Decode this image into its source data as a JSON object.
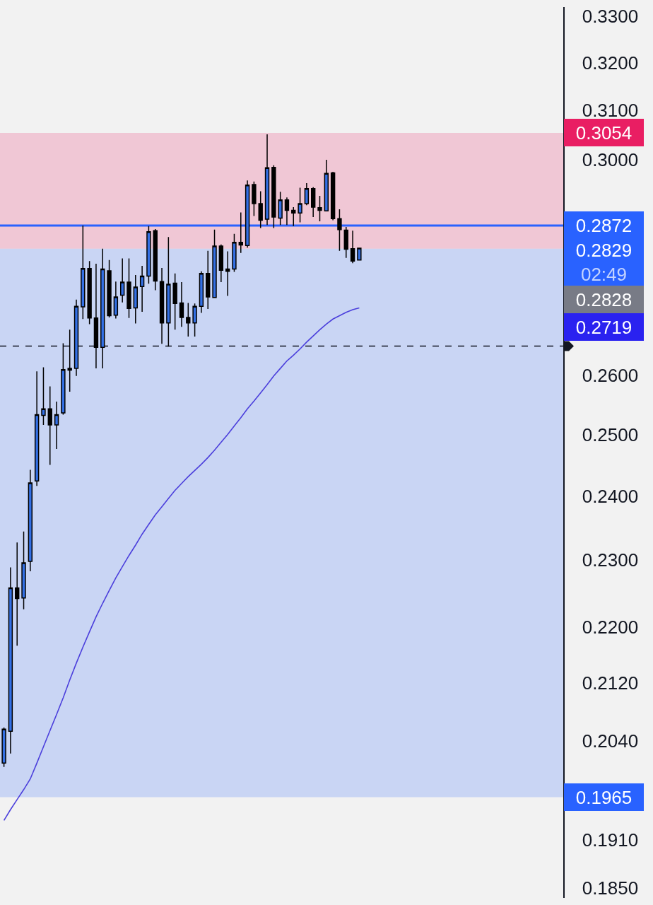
{
  "chart_data": {
    "type": "candlestick",
    "categories": [
      null,
      null,
      null,
      null,
      null,
      null,
      null,
      null,
      null,
      null,
      null,
      null,
      null,
      null,
      null,
      null,
      null,
      null,
      null,
      null,
      null,
      null,
      null,
      null,
      null,
      null,
      null,
      null,
      null,
      null,
      null,
      null,
      null,
      null,
      null,
      null,
      null,
      null,
      null,
      null,
      null,
      null,
      null,
      null,
      null,
      null,
      null,
      null,
      null,
      null,
      null,
      null,
      null,
      null,
      null
    ],
    "ohlc": [
      [
        0.201,
        0.2058,
        0.2005,
        0.2056
      ],
      [
        0.2053,
        0.2289,
        0.2023,
        0.2258
      ],
      [
        0.2258,
        0.2327,
        0.2173,
        0.2242
      ],
      [
        0.2243,
        0.2344,
        0.2226,
        0.2296
      ],
      [
        0.2298,
        0.2442,
        0.2283,
        0.2421
      ],
      [
        0.2424,
        0.2607,
        0.2416,
        0.2533
      ],
      [
        0.2532,
        0.2614,
        0.2516,
        0.2543
      ],
      [
        0.2543,
        0.2581,
        0.245,
        0.2516
      ],
      [
        0.2516,
        0.2555,
        0.2476,
        0.2533
      ],
      [
        0.2536,
        0.2656,
        0.2533,
        0.261
      ],
      [
        0.2612,
        0.268,
        0.2572,
        0.2609
      ],
      [
        0.2612,
        0.2734,
        0.2599,
        0.2722
      ],
      [
        0.2721,
        0.2872,
        0.2699,
        0.2791
      ],
      [
        0.2791,
        0.2805,
        0.269,
        0.2701
      ],
      [
        0.2701,
        0.28,
        0.2612,
        0.2649
      ],
      [
        0.2649,
        0.2828,
        0.2612,
        0.279
      ],
      [
        0.2787,
        0.2807,
        0.2702,
        0.2705
      ],
      [
        0.2706,
        0.2767,
        0.27,
        0.2739
      ],
      [
        0.2742,
        0.281,
        0.2729,
        0.2766
      ],
      [
        0.2766,
        0.281,
        0.2701,
        0.2718
      ],
      [
        0.2719,
        0.2779,
        0.2691,
        0.2757
      ],
      [
        0.2758,
        0.2796,
        0.2712,
        0.2777
      ],
      [
        0.2777,
        0.2871,
        0.2763,
        0.286
      ],
      [
        0.2862,
        0.2865,
        0.2751,
        0.2768
      ],
      [
        0.2767,
        0.2792,
        0.2655,
        0.2692
      ],
      [
        0.2692,
        0.285,
        0.265,
        0.2762
      ],
      [
        0.2764,
        0.2782,
        0.268,
        0.2727
      ],
      [
        0.2728,
        0.2766,
        0.2685,
        0.2702
      ],
      [
        0.2702,
        0.2728,
        0.2668,
        0.2692
      ],
      [
        0.2692,
        0.2727,
        0.2668,
        0.2722
      ],
      [
        0.2722,
        0.2786,
        0.271,
        0.2782
      ],
      [
        0.2782,
        0.2824,
        0.2717,
        0.2739
      ],
      [
        0.2738,
        0.2864,
        0.2737,
        0.2833
      ],
      [
        0.2833,
        0.2836,
        0.2766,
        0.2788
      ],
      [
        0.279,
        0.2823,
        0.2741,
        0.2786
      ],
      [
        0.279,
        0.2856,
        0.2785,
        0.284
      ],
      [
        0.284,
        0.2897,
        0.282,
        0.2835
      ],
      [
        0.2834,
        0.2959,
        0.283,
        0.295
      ],
      [
        0.2951,
        0.2957,
        0.289,
        0.2914
      ],
      [
        0.2914,
        0.2938,
        0.2867,
        0.2882
      ],
      [
        0.2884,
        0.3051,
        0.2873,
        0.2984
      ],
      [
        0.2985,
        0.2989,
        0.2867,
        0.2888
      ],
      [
        0.2886,
        0.2937,
        0.2873,
        0.2921
      ],
      [
        0.2921,
        0.2926,
        0.2873,
        0.2901
      ],
      [
        0.2901,
        0.2907,
        0.2871,
        0.2896
      ],
      [
        0.2896,
        0.2945,
        0.2878,
        0.2914
      ],
      [
        0.2914,
        0.2954,
        0.2911,
        0.2943
      ],
      [
        0.2943,
        0.2946,
        0.2888,
        0.2907
      ],
      [
        0.2906,
        0.2929,
        0.288,
        0.2901
      ],
      [
        0.29,
        0.3,
        0.2899,
        0.2973
      ],
      [
        0.2974,
        0.2976,
        0.2882,
        0.2885
      ],
      [
        0.2885,
        0.2903,
        0.2824,
        0.2864
      ],
      [
        0.2863,
        0.2869,
        0.2811,
        0.2827
      ],
      [
        0.2828,
        0.2862,
        0.2801,
        0.2805
      ],
      [
        0.2807,
        0.283,
        0.2807,
        0.2829
      ]
    ],
    "colors": [
      "#3370e5",
      "#3370e5",
      "#000000",
      "#3370e5",
      "#3370e5",
      "#3370e5",
      "#3370e5",
      "#000000",
      "#3370e5",
      "#3370e5",
      "#000000",
      "#3370e5",
      "#3370e5",
      "#000000",
      "#000000",
      "#3370e5",
      "#000000",
      "#3370e5",
      "#3370e5",
      "#000000",
      "#3370e5",
      "#3370e5",
      "#3370e5",
      "#000000",
      "#000000",
      "#3370e5",
      "#000000",
      "#000000",
      "#000000",
      "#3370e5",
      "#3370e5",
      "#000000",
      "#3370e5",
      "#000000",
      "#000000",
      "#3370e5",
      "#000000",
      "#3370e5",
      "#000000",
      "#000000",
      "#3370e5",
      "#000000",
      "#3370e5",
      "#000000",
      "#000000",
      "#3370e5",
      "#3370e5",
      "#000000",
      "#000000",
      "#3370e5",
      "#000000",
      "#000000",
      "#000000",
      "#000000",
      "#3370e5"
    ],
    "series": [
      {
        "type": "line",
        "color": "#4b3fdc",
        "values": [
          0.1935,
          0.1949,
          0.1962,
          0.1975,
          0.1989,
          0.201,
          0.2032,
          0.2054,
          0.2076,
          0.2099,
          0.2124,
          0.2148,
          0.2171,
          0.2193,
          0.2215,
          0.2235,
          0.2254,
          0.2273,
          0.229,
          0.2307,
          0.2323,
          0.234,
          0.2355,
          0.237,
          0.2383,
          0.2396,
          0.2409,
          0.242,
          0.2431,
          0.2441,
          0.2451,
          0.2462,
          0.2474,
          0.2487,
          0.25,
          0.2514,
          0.2528,
          0.2543,
          0.2556,
          0.257,
          0.2584,
          0.2599,
          0.2612,
          0.2625,
          0.2635,
          0.2646,
          0.2658,
          0.2669,
          0.268,
          0.269,
          0.2699,
          0.2705,
          0.2711,
          0.2716,
          0.2719
        ]
      }
    ],
    "ylim": [
      0.1838,
      0.332
    ],
    "yticks": [
      {
        "value": 0.185,
        "label": "0.1850"
      },
      {
        "value": 0.191,
        "label": "0.1910"
      },
      {
        "value": 0.204,
        "label": "0.2040"
      },
      {
        "value": 0.212,
        "label": "0.2120"
      },
      {
        "value": 0.22,
        "label": "0.2200"
      },
      {
        "value": 0.23,
        "label": "0.2300"
      },
      {
        "value": 0.24,
        "label": "0.2400"
      },
      {
        "value": 0.25,
        "label": "0.2500"
      },
      {
        "value": 0.26,
        "label": "0.2600"
      },
      {
        "value": 0.3,
        "label": "0.3000"
      },
      {
        "value": 0.31,
        "label": "0.3100"
      },
      {
        "value": 0.32,
        "label": "0.3200"
      },
      {
        "value": 0.33,
        "label": "0.3300"
      }
    ],
    "log": true,
    "tick_labels": "y",
    "ref_lines": [
      {
        "axis": "y",
        "value": 0.2872,
        "label": "0.2872",
        "color": "#2962ff",
        "line_style": "solid"
      },
      {
        "axis": "y",
        "value": 0.2651,
        "color": "#131722",
        "line_style": "dashed"
      }
    ],
    "bands": [
      {
        "axis": "y",
        "from": 0.2828,
        "to": 0.3054,
        "label": "0.3054",
        "color": "#e91e63"
      },
      {
        "axis": "y",
        "from": 0.2828,
        "to": 0.1965,
        "label": "0.1965",
        "color": "#2962ff"
      }
    ],
    "annotations": [
      "0.2829\n02:49",
      "0.2828",
      "0.2719"
    ]
  }
}
